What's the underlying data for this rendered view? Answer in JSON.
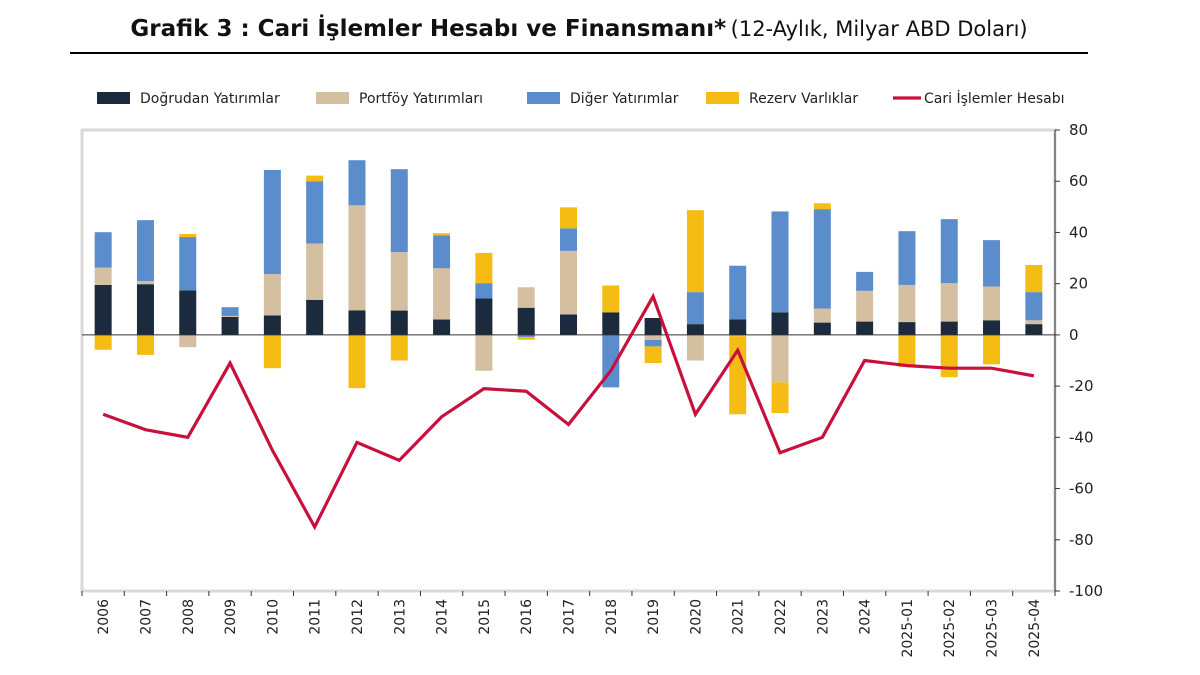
{
  "chart_data": {
    "type": "bar",
    "title": "Grafik 3 : Cari İşlemler Hesabı ve Finansmanı*",
    "subtitle": "(12-Aylık, Milyar ABD Doları)",
    "xlabel": "",
    "ylabel": "",
    "ylim": [
      -100,
      80
    ],
    "yticks": [
      80,
      60,
      40,
      20,
      0,
      -20,
      -40,
      -60,
      -80,
      -100
    ],
    "grid": false,
    "legend_position": "top",
    "categories": [
      "2006",
      "2007",
      "2008",
      "2009",
      "2010",
      "2011",
      "2012",
      "2013",
      "2014",
      "2015",
      "2016",
      "2017",
      "2018",
      "2019",
      "2020",
      "2021",
      "2022",
      "2023",
      "2024",
      "2025-01",
      "2025-02",
      "2025-03",
      "2025-04"
    ],
    "series": [
      {
        "name": "Doğrudan Yatırımlar",
        "type": "bar",
        "color": "#1b2a3c",
        "values": [
          19.5,
          19.8,
          17.4,
          7.0,
          7.6,
          13.7,
          9.6,
          9.5,
          6.0,
          14.2,
          10.6,
          8.0,
          8.8,
          6.6,
          4.2,
          6.0,
          8.8,
          4.8,
          5.2,
          5.0,
          5.2,
          5.7,
          4.2
        ]
      },
      {
        "name": "Portföy Yatırımları",
        "type": "bar",
        "color": "#d4c0a1",
        "values": [
          6.8,
          1.2,
          -4.8,
          0.4,
          16.1,
          22.0,
          41.0,
          22.8,
          20.0,
          -14.0,
          8.0,
          24.8,
          0.0,
          -2.0,
          -10.0,
          -0.5,
          -18.5,
          5.5,
          12.0,
          14.5,
          15.0,
          13.2,
          1.5
        ]
      },
      {
        "name": "Diğer Yatırımlar",
        "type": "bar",
        "color": "#5b8ccc",
        "values": [
          13.8,
          23.8,
          20.8,
          3.4,
          40.7,
          24.2,
          17.6,
          32.4,
          12.8,
          6.0,
          -0.8,
          8.8,
          -20.5,
          -2.5,
          12.5,
          21.0,
          39.4,
          38.8,
          7.4,
          21.0,
          25.0,
          18.1,
          11.0
        ]
      },
      {
        "name": "Rezerv Varlıklar",
        "type": "bar",
        "color": "#f5bd14",
        "values": [
          -5.8,
          -7.8,
          1.2,
          -0.2,
          -13.0,
          2.3,
          -20.8,
          -10.0,
          0.9,
          11.8,
          -1.1,
          8.2,
          10.5,
          -6.5,
          32.0,
          -30.5,
          -12.0,
          2.3,
          0.0,
          -12.5,
          -16.5,
          -11.5,
          10.6
        ]
      },
      {
        "name": "Cari İşlemler Hesabı",
        "type": "line",
        "color": "#c8103d",
        "values": [
          -31,
          -37,
          -40,
          -11,
          -45,
          -75,
          -42,
          -49,
          -32,
          -21,
          -22,
          -35,
          -14,
          15,
          -31,
          -6,
          -46,
          -40,
          -10,
          -12,
          -13,
          -13,
          -16
        ]
      }
    ]
  }
}
